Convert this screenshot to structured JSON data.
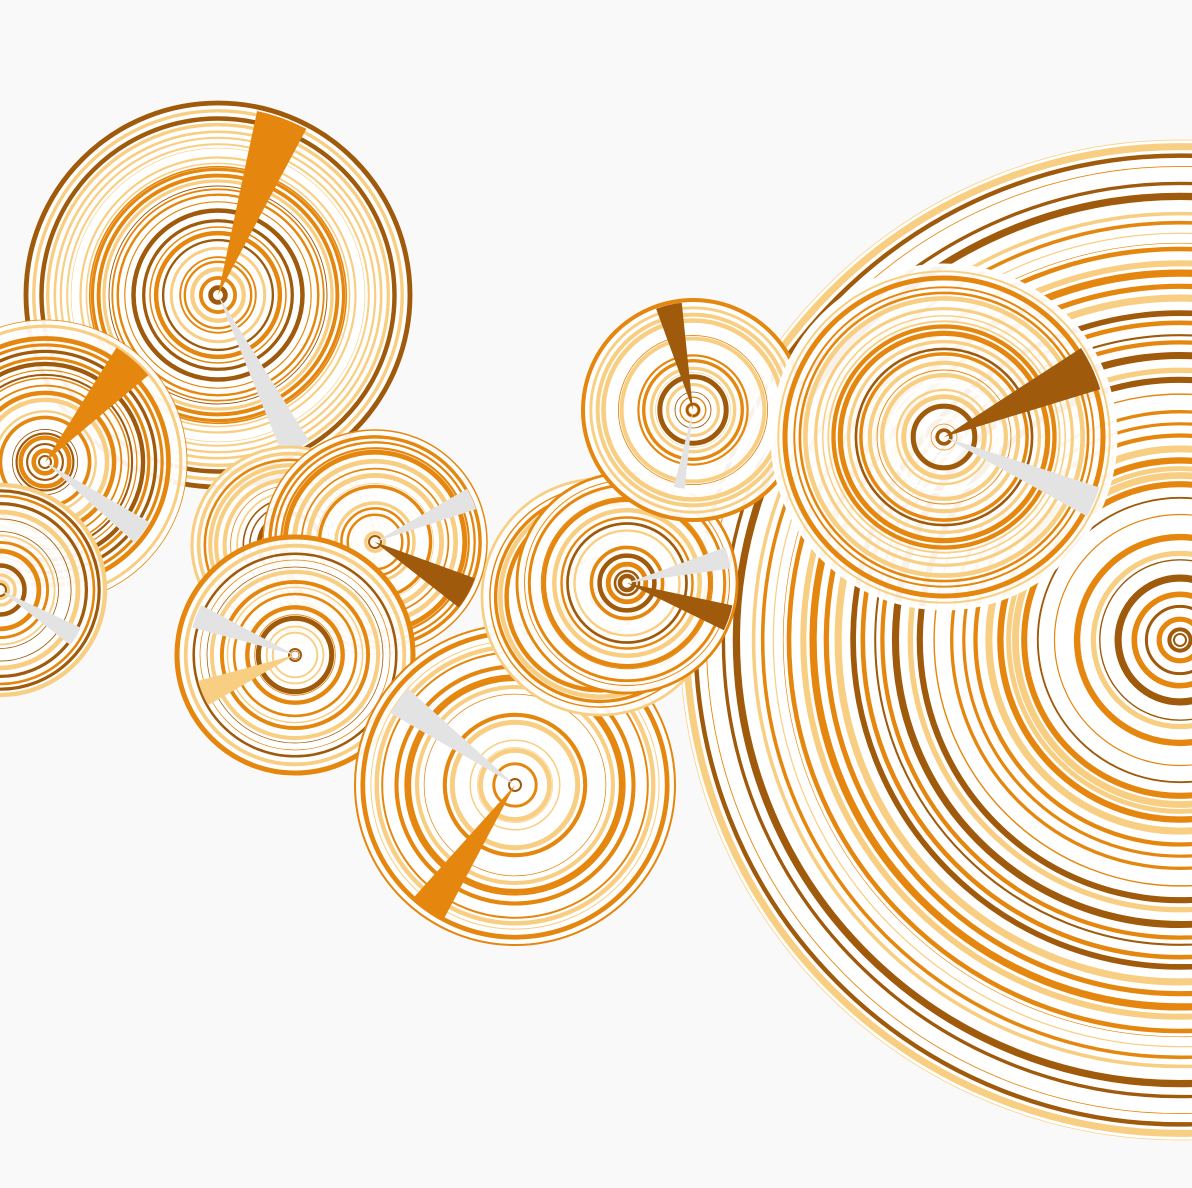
{
  "palette": {
    "background": "#f9f9f9",
    "light_orange": "#f8ce82",
    "orange": "#e5870e",
    "dark_orange": "#9f5a0b",
    "grey": "#e3e3e3",
    "white": "#ffffff"
  }
}
